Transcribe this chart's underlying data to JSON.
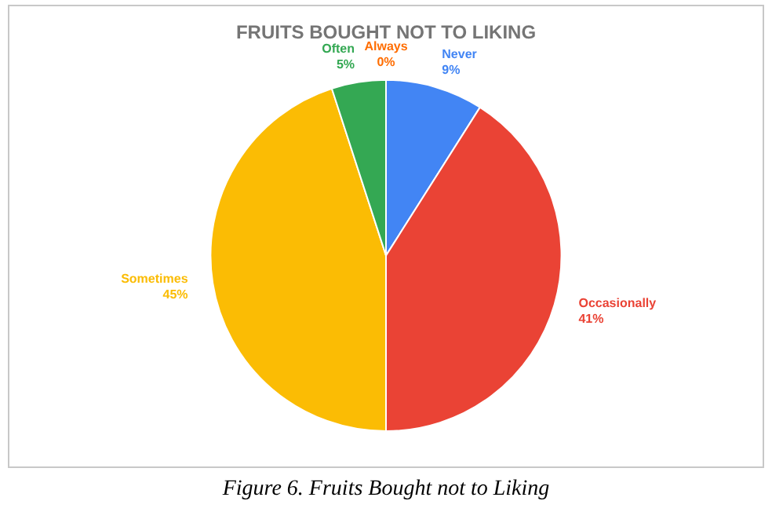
{
  "chart_data": {
    "type": "pie",
    "title": "FRUITS BOUGHT NOT TO LIKING",
    "categories": [
      "Never",
      "Occasionally",
      "Sometimes",
      "Often",
      "Always"
    ],
    "values": [
      9,
      41,
      45,
      5,
      0
    ],
    "value_labels": [
      "9%",
      "41%",
      "45%",
      "5%",
      "0%"
    ],
    "colors": [
      "#4285f4",
      "#ea4335",
      "#fbbc04",
      "#34a853",
      "#ff6d01"
    ],
    "legend": false,
    "annotations": [
      "Figure 6. Fruits Bought not to Liking"
    ]
  }
}
